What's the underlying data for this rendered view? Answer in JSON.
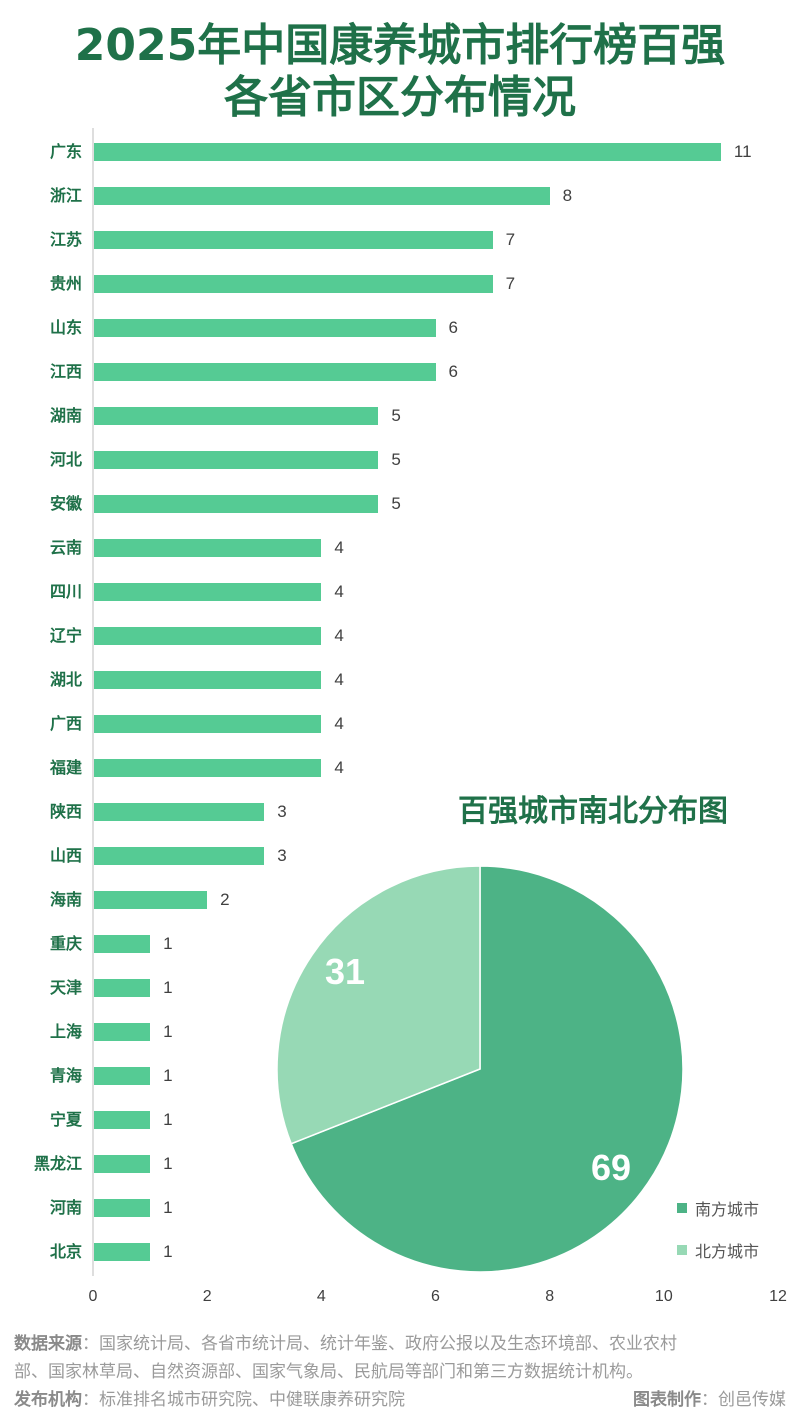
{
  "header": {
    "title_line1": "2025年中国康养城市排行榜百强",
    "title_line2": "各省市区分布情况"
  },
  "colors": {
    "title": "#1f7149",
    "bar": "#55cb94",
    "south": "#4db386",
    "north": "#97d9b5",
    "footer": "#9a9a9a"
  },
  "chart_data": [
    {
      "type": "bar",
      "orientation": "horizontal",
      "title": "2025年中国康养城市排行榜百强各省市区分布情况",
      "categories": [
        "广东",
        "浙江",
        "江苏",
        "贵州",
        "山东",
        "江西",
        "湖南",
        "河北",
        "安徽",
        "云南",
        "四川",
        "辽宁",
        "湖北",
        "广西",
        "福建",
        "陕西",
        "山西",
        "海南",
        "重庆",
        "天津",
        "上海",
        "青海",
        "宁夏",
        "黑龙江",
        "河南",
        "北京"
      ],
      "values": [
        11,
        8,
        7,
        7,
        6,
        6,
        5,
        5,
        5,
        4,
        4,
        4,
        4,
        4,
        4,
        3,
        3,
        2,
        1,
        1,
        1,
        1,
        1,
        1,
        1,
        1
      ],
      "xlabel": "",
      "ylabel": "",
      "xlim": [
        0,
        12
      ],
      "xticks": [
        0,
        2,
        4,
        6,
        8,
        10,
        12
      ],
      "grid": false,
      "data_labels": true
    },
    {
      "type": "pie",
      "title": "百强城市南北分布图",
      "categories": [
        "南方城市",
        "北方城市"
      ],
      "values": [
        69,
        31
      ],
      "legend_position": "bottom-right"
    }
  ],
  "pie": {
    "title": "百强城市南北分布图",
    "south_label": "69",
    "north_label": "31",
    "legend": [
      "南方城市",
      "北方城市"
    ]
  },
  "footer": {
    "source_label": "数据来源",
    "source_text_line1": "：国家统计局、各省市统计局、统计年鉴、政府公报以及生态环境部、农业农村",
    "source_text_line2": "部、国家林草局、自然资源部、国家气象局、民航局等部门和第三方数据统计机构。",
    "publisher_label": "发布机构",
    "publisher_text": "：标准排名城市研究院、中健联康养研究院",
    "maker_label": "图表制作",
    "maker_text": "：创邑传媒"
  }
}
